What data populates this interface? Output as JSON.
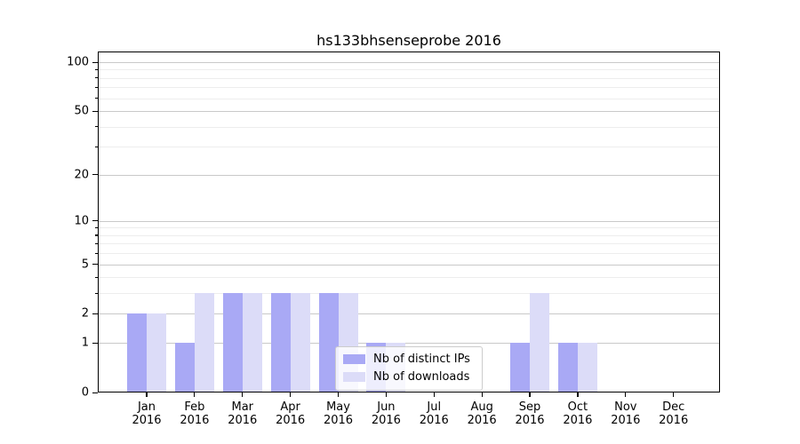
{
  "chart_data": {
    "type": "bar",
    "title": "hs133bhsenseprobe 2016",
    "categories": [
      "Jan 2016",
      "Feb 2016",
      "Mar 2016",
      "Apr 2016",
      "May 2016",
      "Jun 2016",
      "Jul 2016",
      "Aug 2016",
      "Sep 2016",
      "Oct 2016",
      "Nov 2016",
      "Dec 2016"
    ],
    "series": [
      {
        "name": "Nb of distinct IPs",
        "color": "#a9a9f5",
        "values": [
          2,
          1,
          3,
          3,
          3,
          1,
          0,
          0,
          1,
          1,
          0,
          0
        ]
      },
      {
        "name": "Nb of downloads",
        "color": "#dcdcf8",
        "values": [
          2,
          3,
          3,
          3,
          3,
          1,
          0,
          0,
          3,
          1,
          0,
          0
        ]
      }
    ],
    "yscale": "log1p",
    "ylim": [
      0,
      117
    ],
    "y_major_ticks": [
      0,
      1,
      2,
      5,
      10,
      20,
      50,
      100
    ],
    "y_minor_ticks": [
      3,
      4,
      6,
      7,
      8,
      9,
      30,
      40,
      60,
      70,
      80,
      90
    ],
    "grid": "horizontal major and minor gridlines on",
    "legend_position": "inside lower-center",
    "bar_grouping": "pair side-by-side centered on month tick"
  },
  "colors": {
    "background": "#ffffff",
    "axis": "#000000",
    "grid_major": "#c9c9c9",
    "grid_minor": "#ededed",
    "bar_distinct_ips": "#a9a9f5",
    "bar_downloads": "#dcdcf8",
    "legend_border": "#cccccc",
    "text": "#000000"
  }
}
